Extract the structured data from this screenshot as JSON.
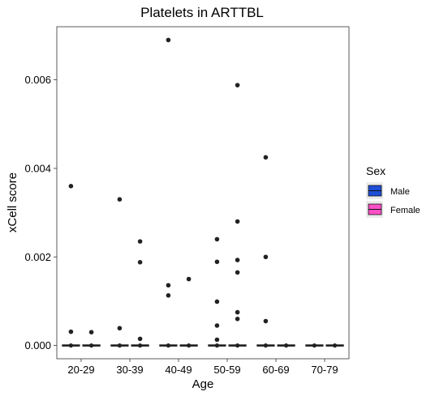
{
  "colors": {
    "male": "#1f4fd8",
    "female": "#ff4fc7",
    "point": "#222222",
    "median": "#222222"
  },
  "legend": {
    "title": "Sex",
    "placement": "right",
    "items": [
      "Male",
      "Female"
    ]
  },
  "chart_data": {
    "type": "boxplot",
    "title": "Platelets in ARTTBL",
    "xlabel": "Age",
    "ylabel": "xCell score",
    "ylim": [
      -0.0003,
      0.0072
    ],
    "yticks": [
      0.0,
      0.002,
      0.004,
      0.006
    ],
    "ytick_labels": [
      "0.000",
      "0.002",
      "0.004",
      "0.006"
    ],
    "grid": false,
    "categories": [
      "20-29",
      "30-39",
      "40-49",
      "50-59",
      "60-69",
      "70-79"
    ],
    "series": [
      {
        "name": "Male",
        "groups": [
          {
            "category": "20-29",
            "median": 0,
            "outliers": [
              0.0036,
              0.00031
            ]
          },
          {
            "category": "30-39",
            "median": 0,
            "outliers": [
              0.0033,
              0.00039
            ]
          },
          {
            "category": "40-49",
            "median": 0,
            "outliers": [
              0.0069,
              0.00136,
              0.00113
            ]
          },
          {
            "category": "50-59",
            "median": 0,
            "outliers": [
              0.0024,
              0.00189,
              0.00099,
              0.00045,
              0.00013
            ]
          },
          {
            "category": "60-69",
            "median": 0,
            "outliers": [
              0.00425,
              0.002,
              0.00055
            ]
          },
          {
            "category": "70-79",
            "median": 0,
            "outliers": []
          }
        ]
      },
      {
        "name": "Female",
        "groups": [
          {
            "category": "20-29",
            "median": 0,
            "outliers": [
              0.0003
            ]
          },
          {
            "category": "30-39",
            "median": 0,
            "outliers": [
              0.00235,
              0.00188,
              0.00015
            ]
          },
          {
            "category": "40-49",
            "median": 0,
            "outliers": [
              0.0015
            ]
          },
          {
            "category": "50-59",
            "median": 0,
            "outliers": [
              0.00588,
              0.0028,
              0.00193,
              0.00165,
              0.00075,
              0.0006
            ]
          },
          {
            "category": "60-69",
            "median": 0,
            "outliers": []
          },
          {
            "category": "70-79",
            "median": 0,
            "outliers": []
          }
        ]
      }
    ]
  }
}
